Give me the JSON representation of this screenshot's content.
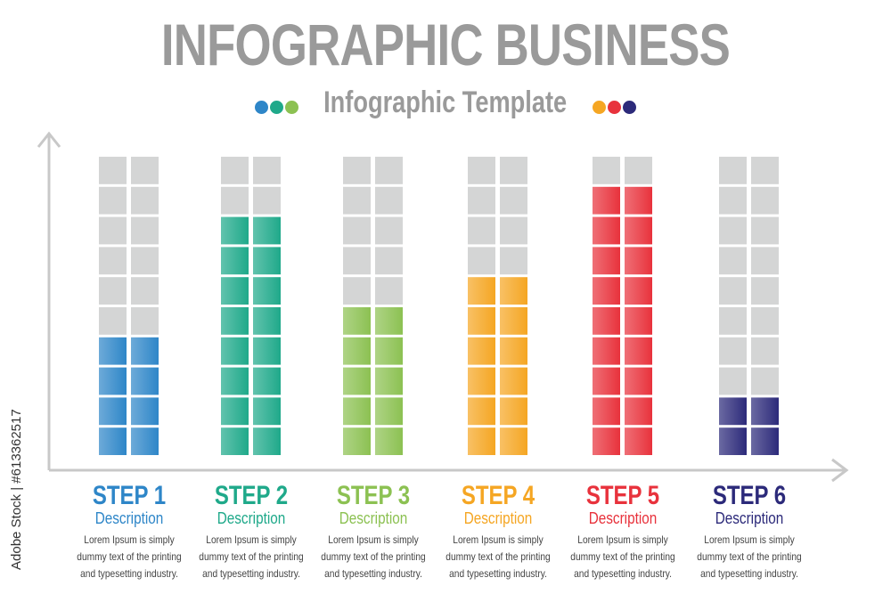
{
  "title": "INFOGRAPHIC BUSINESS",
  "subtitle": "Infographic Template",
  "left_dot_colors": [
    "#2e86c8",
    "#1fa98a",
    "#8cc152"
  ],
  "right_dot_colors": [
    "#f5a623",
    "#e8323c",
    "#2c2a7a"
  ],
  "watermark": "Adobe Stock | #613362517",
  "chart_data": {
    "type": "bar",
    "categories": [
      "STEP 1",
      "STEP 2",
      "STEP 3",
      "STEP 4",
      "STEP 5",
      "STEP 6"
    ],
    "values": [
      4,
      8,
      5,
      6,
      9,
      2
    ],
    "ylim": [
      0,
      10
    ],
    "grid": false,
    "colors": [
      "#2e86c8",
      "#1fa98a",
      "#8cc152",
      "#f5a623",
      "#e8323c",
      "#2c2a7a"
    ],
    "steps": [
      {
        "label": "STEP 1",
        "desc": "Description",
        "text": [
          "Lorem Ipsum is simply",
          "dummy text of the printing",
          "and typesetting industry."
        ]
      },
      {
        "label": "STEP 2",
        "desc": "Description",
        "text": [
          "Lorem Ipsum is simply",
          "dummy text of the printing",
          "and typesetting industry."
        ]
      },
      {
        "label": "STEP 3",
        "desc": "Description",
        "text": [
          "Lorem Ipsum is simply",
          "dummy text of the printing",
          "and typesetting industry."
        ]
      },
      {
        "label": "STEP 4",
        "desc": "Description",
        "text": [
          "Lorem Ipsum is simply",
          "dummy text of the printing",
          "and typesetting industry."
        ]
      },
      {
        "label": "STEP 5",
        "desc": "Description",
        "text": [
          "Lorem Ipsum is simply",
          "dummy text of the printing",
          "and typesetting industry."
        ]
      },
      {
        "label": "STEP 6",
        "desc": "Description",
        "text": [
          "Lorem Ipsum is simply",
          "dummy text of the printing",
          "and typesetting industry."
        ]
      }
    ]
  }
}
